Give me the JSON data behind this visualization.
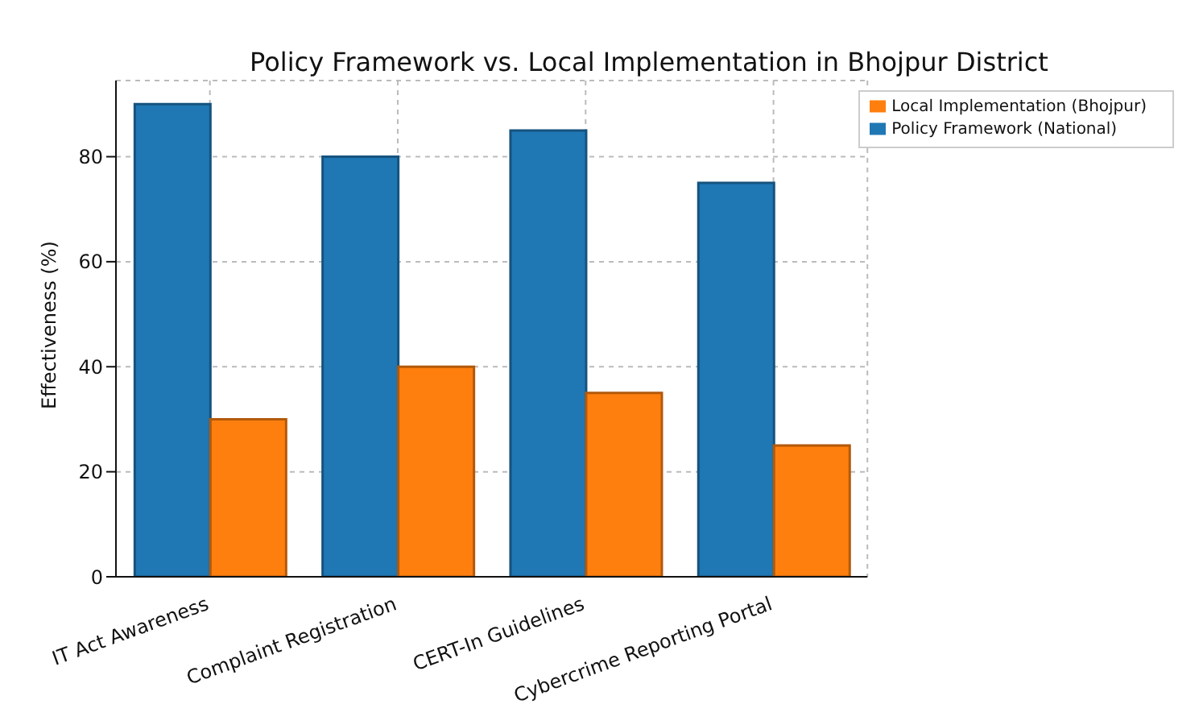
{
  "chart_data": {
    "type": "bar",
    "title": "Policy Framework vs. Local Implementation in Bhojpur District",
    "ylabel": "Effectiveness (%)",
    "categories": [
      "IT Act Awareness",
      "Complaint Registration",
      "CERT-In Guidelines",
      "Cybercrime Reporting Portal"
    ],
    "series": [
      {
        "name": "Policy Framework (National)",
        "color": "#1f77b4",
        "values": [
          90,
          80,
          85,
          75
        ]
      },
      {
        "name": "Local Implementation (Bhojpur)",
        "color": "#ff7f0e",
        "values": [
          30,
          40,
          35,
          25
        ]
      }
    ],
    "ylim": [
      0,
      94.5
    ],
    "yticks": [
      0,
      20,
      40,
      60,
      80
    ],
    "grid": true,
    "legend": "top right"
  }
}
